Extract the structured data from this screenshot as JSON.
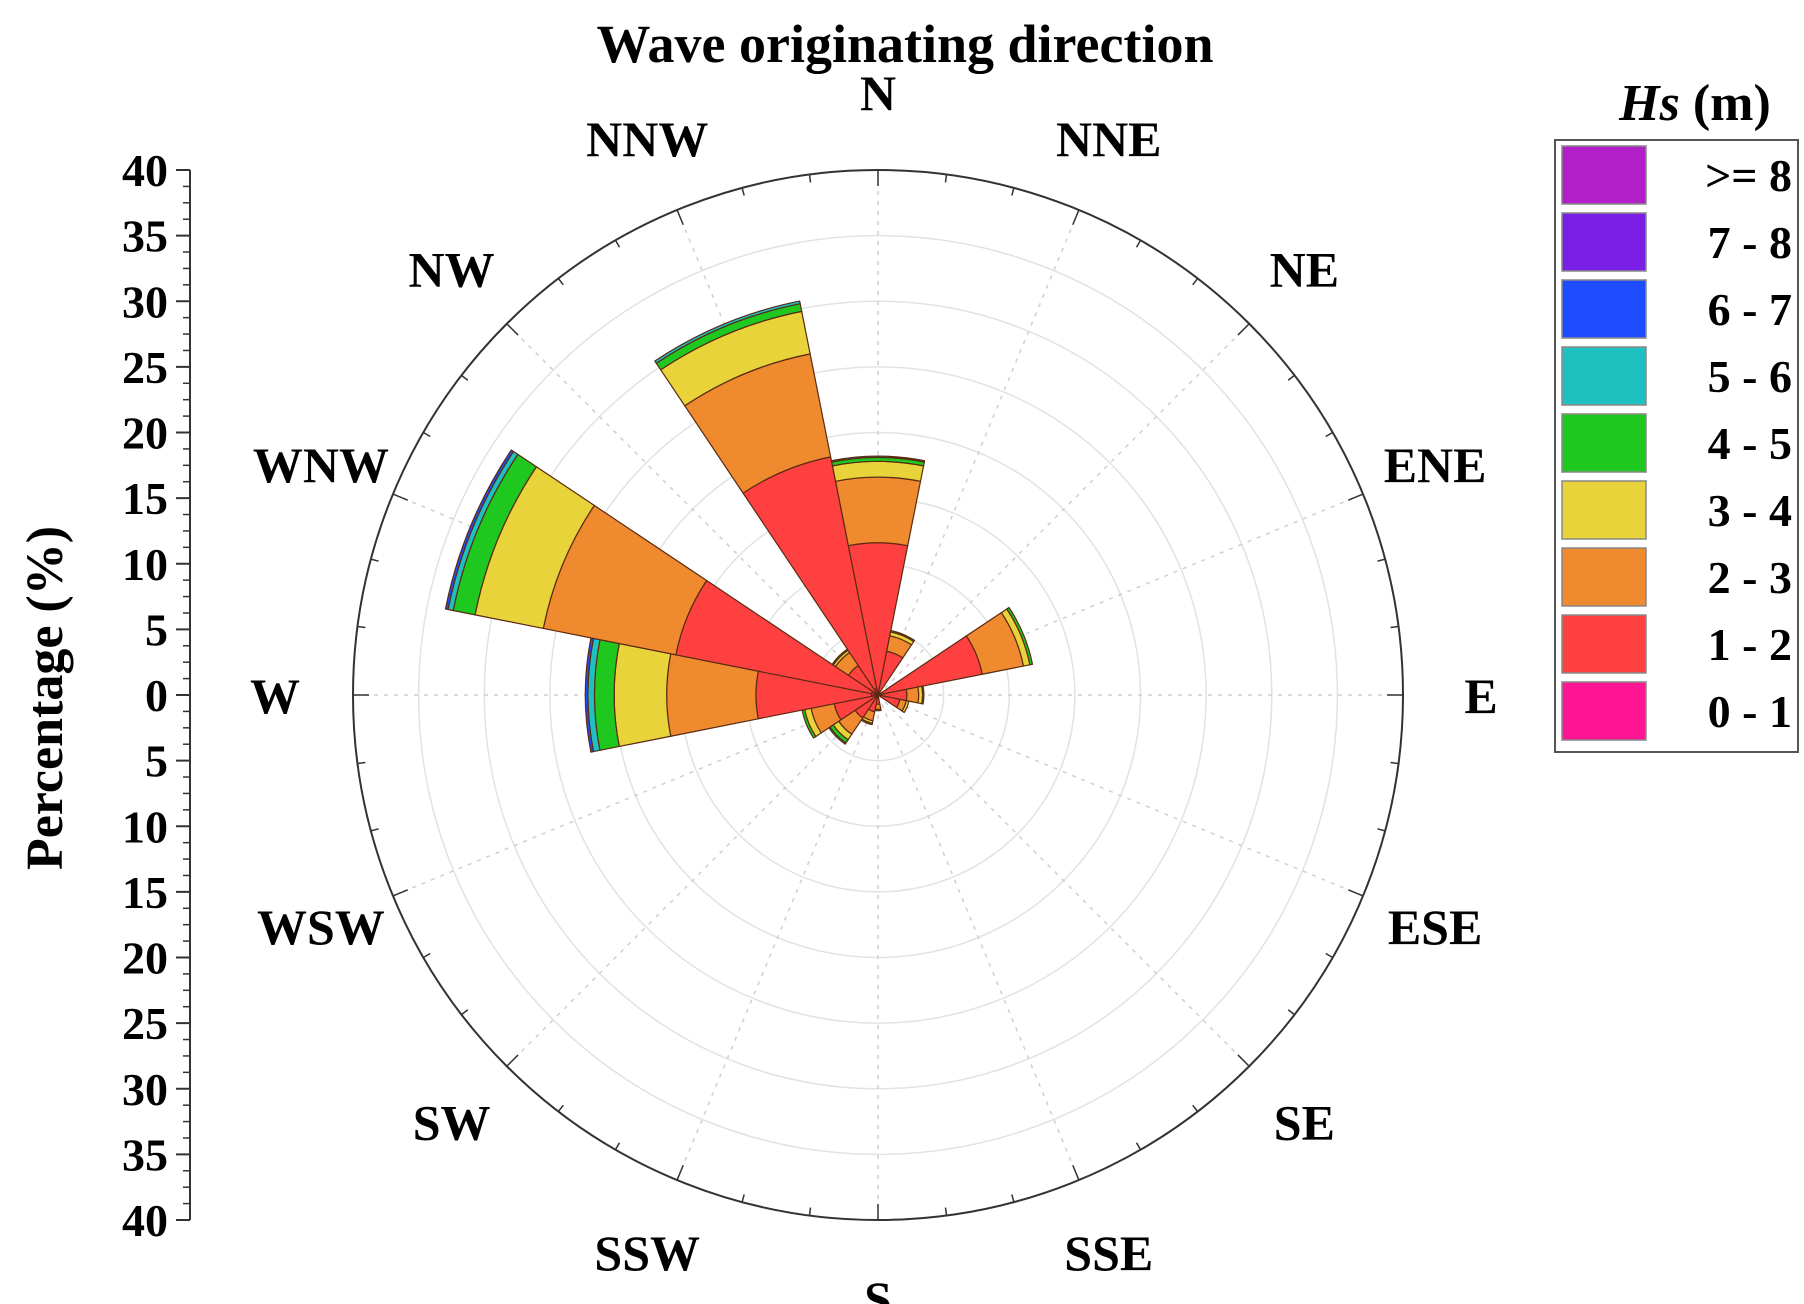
{
  "chart_data": {
    "type": "rose",
    "title": "Wave originating direction",
    "ylabel": "Percentage (%)",
    "rmax": 40,
    "ring_step": 5,
    "y_ticks_upper": [
      "40",
      "35",
      "30",
      "25",
      "20",
      "15",
      "10",
      "5",
      "0"
    ],
    "y_ticks_lower": [
      "5",
      "10",
      "15",
      "20",
      "25",
      "30",
      "35",
      "40"
    ],
    "directions": [
      "N",
      "NNE",
      "NE",
      "ENE",
      "E",
      "ESE",
      "SE",
      "SSE",
      "S",
      "SSW",
      "SW",
      "WSW",
      "W",
      "WNW",
      "NW",
      "NNW"
    ],
    "legend_title_italic": "Hs",
    "legend_title_unit": " (m)",
    "classes": [
      "0 - 1",
      "1 - 2",
      "2 - 3",
      "3 - 4",
      "4 - 5",
      "5 - 6",
      "6 - 7",
      "7 - 8",
      ">= 8"
    ],
    "legend_order": [
      ">= 8",
      "7 - 8",
      "6 - 7",
      "5 - 6",
      "4 - 5",
      "3 - 4",
      "2 - 3",
      "1 - 2",
      "0 - 1"
    ],
    "colors": {
      "0 - 1": "#ff1493",
      "1 - 2": "#ff4040",
      "2 - 3": "#f08a2e",
      "3 - 4": "#e8d33a",
      "4 - 5": "#1ec81e",
      "5 - 6": "#1ec0c0",
      "6 - 7": "#1e4cff",
      "7 - 8": "#7a1ee6",
      ">= 8": "#b21ec8"
    },
    "series": [
      {
        "direction": "N",
        "values": [
          0.3,
          11.3,
          5.0,
          1.2,
          0.3,
          0.1,
          0.0,
          0.0,
          0.0
        ]
      },
      {
        "direction": "NNE",
        "values": [
          0.2,
          3.2,
          1.2,
          0.3,
          0.1,
          0.0,
          0.0,
          0.0,
          0.0
        ]
      },
      {
        "direction": "NE",
        "values": [
          0.0,
          0.0,
          0.0,
          0.0,
          0.0,
          0.0,
          0.0,
          0.0,
          0.0
        ]
      },
      {
        "direction": "ENE",
        "values": [
          0.1,
          8.0,
          3.2,
          0.5,
          0.2,
          0.0,
          0.0,
          0.0,
          0.0
        ]
      },
      {
        "direction": "E",
        "values": [
          0.1,
          2.1,
          0.9,
          0.3,
          0.1,
          0.0,
          0.0,
          0.0,
          0.0
        ]
      },
      {
        "direction": "ESE",
        "values": [
          0.1,
          1.6,
          0.5,
          0.2,
          0.0,
          0.0,
          0.0,
          0.0,
          0.0
        ]
      },
      {
        "direction": "SE",
        "values": [
          0.0,
          0.0,
          0.0,
          0.0,
          0.0,
          0.0,
          0.0,
          0.0,
          0.0
        ]
      },
      {
        "direction": "SSE",
        "values": [
          0.0,
          0.0,
          0.0,
          0.0,
          0.0,
          0.0,
          0.0,
          0.0,
          0.0
        ]
      },
      {
        "direction": "S",
        "values": [
          0.1,
          0.6,
          0.4,
          0.1,
          0.0,
          0.0,
          0.0,
          0.0,
          0.0
        ]
      },
      {
        "direction": "SSW",
        "values": [
          0.1,
          1.2,
          0.7,
          0.2,
          0.1,
          0.0,
          0.0,
          0.0,
          0.0
        ]
      },
      {
        "direction": "SW",
        "values": [
          0.1,
          2.0,
          1.5,
          0.5,
          0.3,
          0.1,
          0.0,
          0.0,
          0.0
        ]
      },
      {
        "direction": "WSW",
        "values": [
          0.2,
          3.2,
          1.8,
          0.5,
          0.2,
          0.0,
          0.0,
          0.0,
          0.0
        ]
      },
      {
        "direction": "W",
        "values": [
          0.5,
          8.8,
          6.8,
          4.0,
          1.5,
          0.5,
          0.2,
          0.0,
          0.0
        ]
      },
      {
        "direction": "WNW",
        "values": [
          0.5,
          15.2,
          10.3,
          5.3,
          1.7,
          0.4,
          0.2,
          0.0,
          0.0
        ]
      },
      {
        "direction": "NW",
        "values": [
          0.2,
          2.5,
          1.2,
          0.2,
          0.1,
          0.0,
          0.0,
          0.0,
          0.0
        ]
      },
      {
        "direction": "NNW",
        "values": [
          0.5,
          18.0,
          8.0,
          3.3,
          0.6,
          0.2,
          0.0,
          0.0,
          0.0
        ]
      }
    ]
  }
}
